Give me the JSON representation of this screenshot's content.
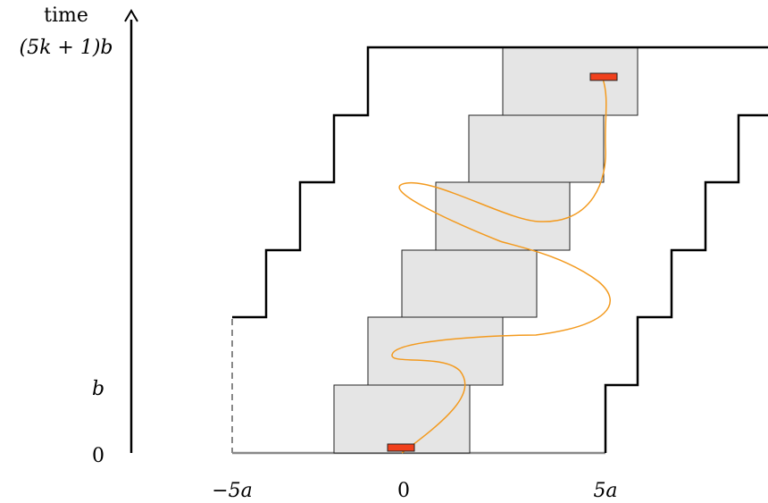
{
  "y_axis": {
    "title": "time",
    "top_label": "(5k + 1)b",
    "tick_b": "b",
    "tick_0": "0"
  },
  "x_axis": {
    "labels": [
      "−5a",
      "0",
      "5a"
    ]
  },
  "colors": {
    "box_fill": "#e5e5e5",
    "box_stroke": "#222222",
    "path": "#f39a1e",
    "marker": "#f0401c",
    "staircase": "#000000",
    "baseline": "#888888"
  }
}
